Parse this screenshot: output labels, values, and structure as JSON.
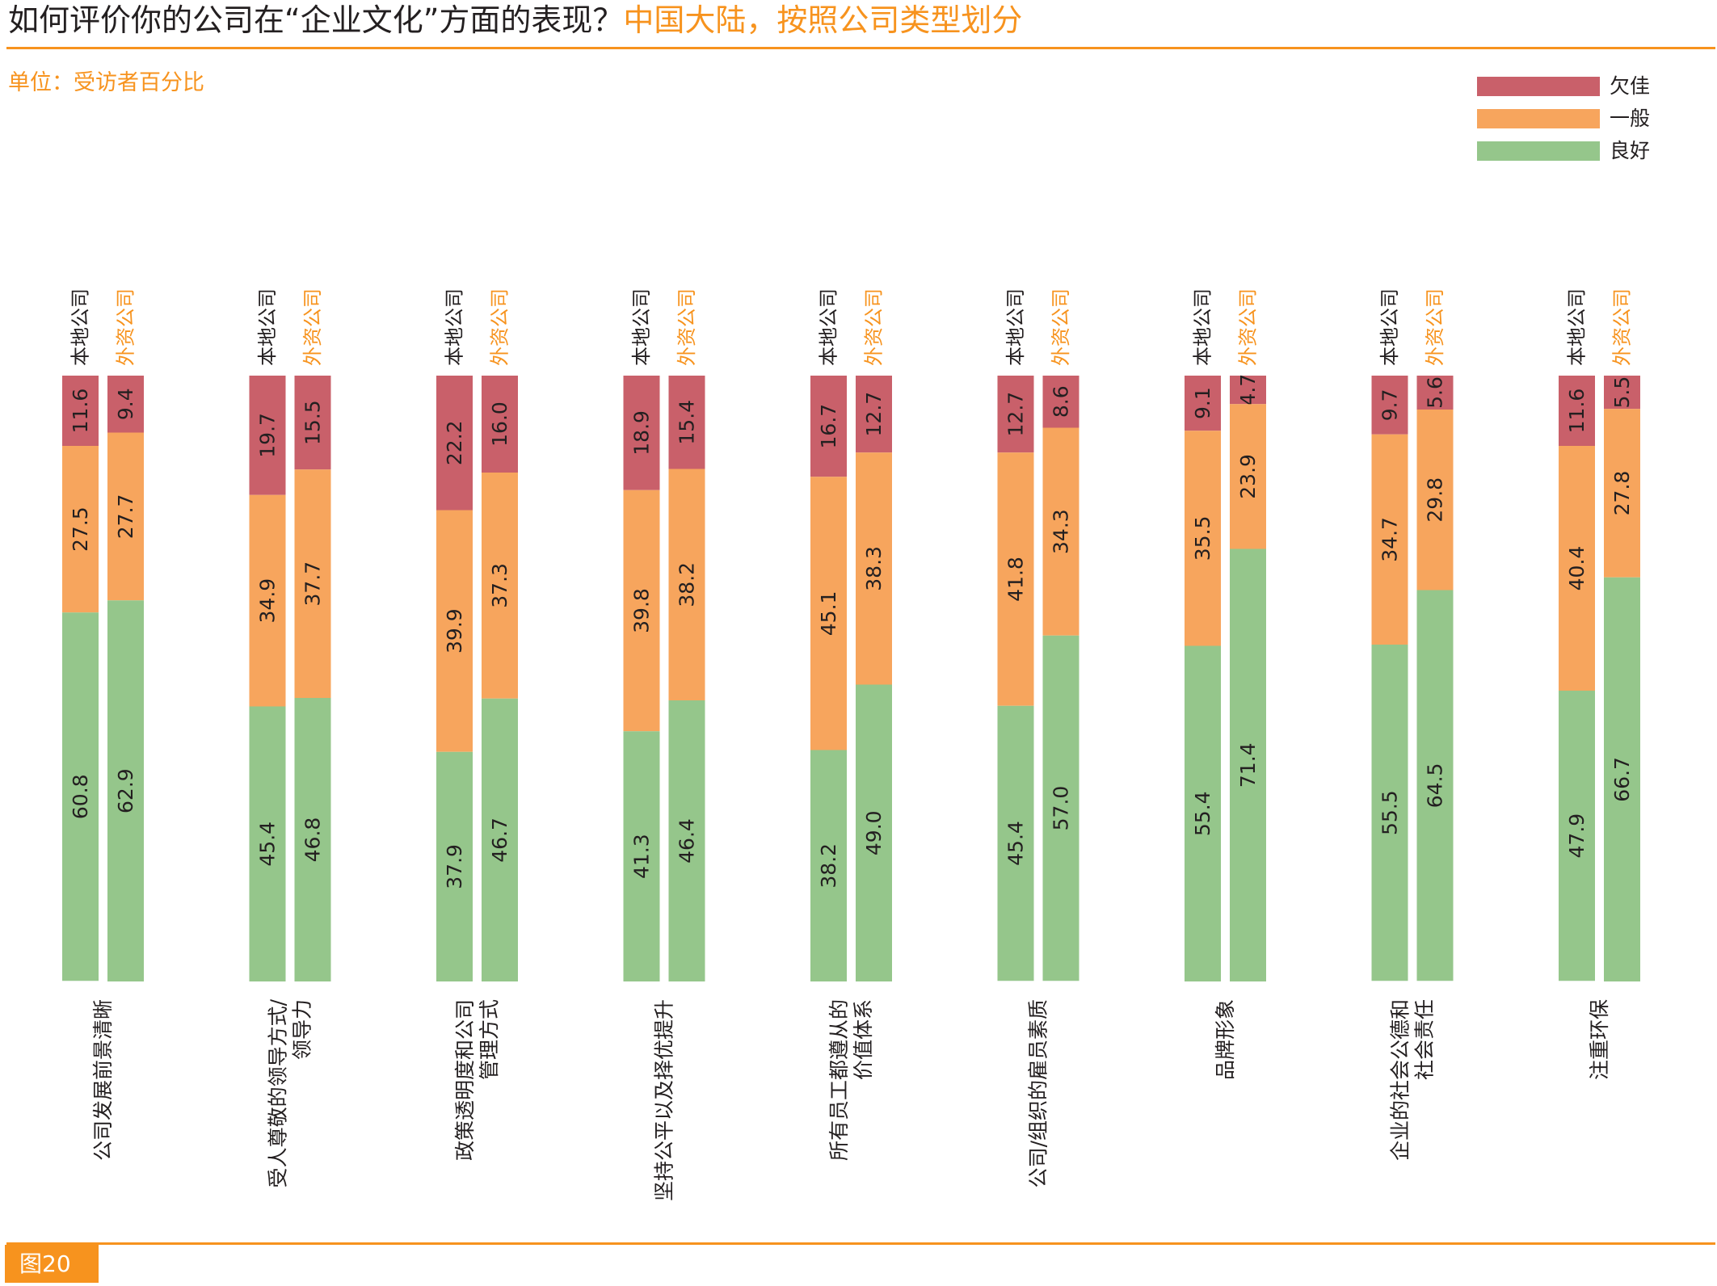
{
  "title": {
    "main": "如何评价你的公司在“企业文化”方面的表现？",
    "sub": "中国大陆，按照公司类型划分"
  },
  "unit_label": "单位：受访者百分比",
  "figure_label": "图20",
  "colors": {
    "accent": "#f7931e",
    "poor": "#c9606a",
    "average": "#f7a55d",
    "good": "#95c68b"
  },
  "chart_data": {
    "type": "bar",
    "stacked": true,
    "orientation": "vertical",
    "legend": [
      "欠佳",
      "一般",
      "良好"
    ],
    "legend_placement": "top-right",
    "company_types": [
      "本地公司",
      "外资公司"
    ],
    "categories": [
      "公司发展前景清晰",
      "受人尊敬的领导方式/领导力",
      "政策透明度和公司管理方式",
      "坚持公平以及择优提升",
      "所有员工都遵从的价值体系",
      "公司/组织的雇员素质",
      "品牌形象",
      "企业的社会公德和社会责任",
      "注重环保"
    ],
    "category_lines": [
      [
        "公司发展前景清晰"
      ],
      [
        "受人尊敬的领导方式/",
        "领导力"
      ],
      [
        "政策透明度和公司",
        "管理方式"
      ],
      [
        "坚持公平以及择优提升"
      ],
      [
        "所有员工都遵从的",
        "价值体系"
      ],
      [
        "公司/组织的雇员素质"
      ],
      [
        "品牌形象"
      ],
      [
        "企业的社会公德和",
        "社会责任"
      ],
      [
        "注重环保"
      ]
    ],
    "series": [
      {
        "name": "欠佳",
        "local": [
          11.6,
          19.7,
          22.2,
          18.9,
          16.7,
          12.7,
          9.1,
          9.7,
          11.6
        ],
        "foreign": [
          9.4,
          15.5,
          16.0,
          15.4,
          12.7,
          8.6,
          4.7,
          5.6,
          5.5
        ]
      },
      {
        "name": "一般",
        "local": [
          27.5,
          34.9,
          39.9,
          39.8,
          45.1,
          41.8,
          35.5,
          34.7,
          40.4
        ],
        "foreign": [
          27.7,
          37.7,
          37.3,
          38.2,
          38.3,
          34.3,
          23.9,
          29.8,
          27.8
        ]
      },
      {
        "name": "良好",
        "local": [
          60.8,
          45.4,
          37.9,
          41.3,
          38.2,
          45.4,
          55.4,
          55.5,
          47.9
        ],
        "foreign": [
          62.9,
          46.8,
          46.7,
          46.4,
          49.0,
          57.0,
          71.4,
          64.5,
          66.7
        ]
      }
    ],
    "ylim": [
      0,
      100
    ]
  }
}
